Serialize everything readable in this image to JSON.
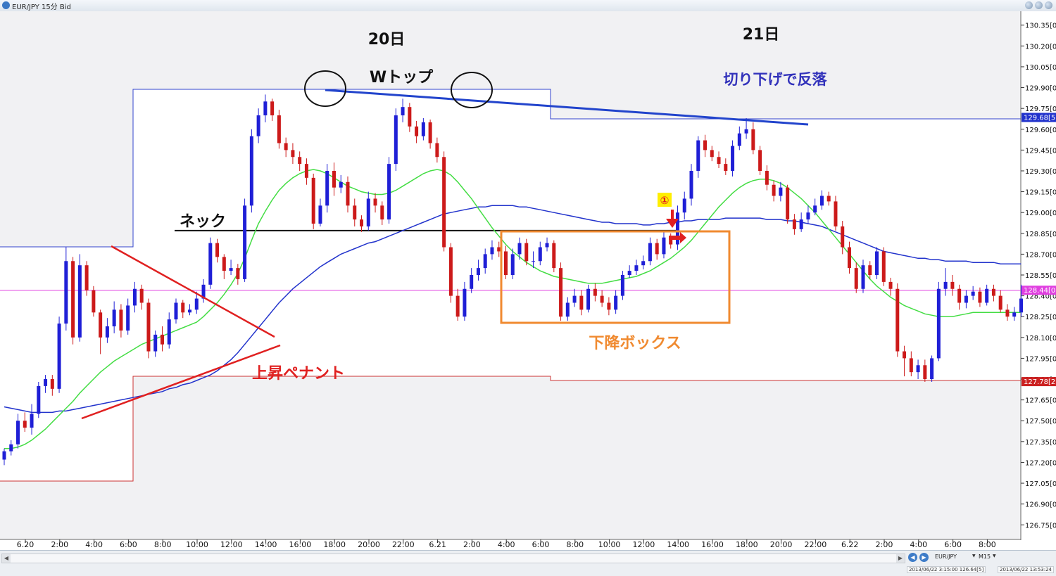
{
  "window": {
    "title": "EUR/JPY 15分 Bid"
  },
  "chart_data": {
    "type": "candlestick",
    "symbol": "EUR/JPY",
    "timeframe": "15分",
    "price": "Bid",
    "ylim": [
      126.65,
      130.45
    ],
    "y_ticks": [
      "130.35[0",
      "130.20[0",
      "130.05[0",
      "129.90[0",
      "129.75[0",
      "129.60[0",
      "129.45[0",
      "129.30[0",
      "129.15[0",
      "129.00[0",
      "128.85[0",
      "128.70[0",
      "128.55[0",
      "128.40[0",
      "128.25[0",
      "128.10[0",
      "127.95[0",
      "127.80[0",
      "127.65[0",
      "127.50[0",
      "127.35[0",
      "127.20[0",
      "127.05[0",
      "126.90[0",
      "126.75[0"
    ],
    "x_ticks": [
      "6.20",
      "2:00",
      "4:00",
      "6:00",
      "8:00",
      "10:00",
      "12:00",
      "14:00",
      "16:00",
      "18:00",
      "20:00",
      "22:00",
      "6.21",
      "2:00",
      "4:00",
      "6:00",
      "8:00",
      "10:00",
      "12:00",
      "14:00",
      "16:00",
      "18:00",
      "20:00",
      "22:00",
      "6.22",
      "2:00",
      "4:00",
      "6:00",
      "8:00"
    ],
    "x_tick_hours": [
      0,
      2,
      4,
      6,
      8,
      10,
      12,
      14,
      16,
      18,
      20,
      22,
      24,
      26,
      28,
      30,
      32,
      34,
      36,
      38,
      40,
      42,
      44,
      46,
      48,
      50,
      52,
      54,
      56
    ],
    "price_labels": {
      "upper": "129.68[5",
      "current": "128.44[0",
      "lower": "127.78[2"
    },
    "levels": {
      "current": 128.44,
      "upper": 129.685,
      "lower": 127.782,
      "neck": 128.87
    },
    "day_labels": [
      "20日",
      "21日"
    ],
    "annotations": {
      "w_top": "Wトップ",
      "neck": "ネック",
      "descending_box": "下降ボックス",
      "rising_pennant": "上昇ペナント",
      "lower_high_fall": "切り下げで反落",
      "marker": "①"
    },
    "candles": {
      "open": [
        127.22,
        127.28,
        127.33,
        127.5,
        127.45,
        127.55,
        127.75,
        127.8,
        127.73,
        128.2,
        128.65,
        128.1,
        128.62,
        128.44,
        128.28,
        128.1,
        128.18,
        128.3,
        128.15,
        128.33,
        128.45,
        128.35,
        128.0,
        128.12,
        128.05,
        128.23,
        128.35,
        128.28,
        128.3,
        128.38,
        128.48,
        128.78,
        128.68,
        128.58,
        128.6,
        128.52,
        129.05,
        129.55,
        129.7,
        129.8,
        129.7,
        129.5,
        129.45,
        129.4,
        129.35,
        129.25,
        128.92,
        129.05,
        129.3,
        129.18,
        129.22,
        129.05,
        128.95,
        128.9,
        129.1,
        129.05,
        128.95,
        129.35,
        129.7,
        129.76,
        129.62,
        129.55,
        129.65,
        129.5,
        129.4,
        128.75,
        128.4,
        128.25,
        128.45,
        128.55,
        128.6,
        128.7,
        128.75,
        128.72,
        128.55,
        128.7,
        128.78,
        128.65,
        128.65,
        128.75,
        128.78,
        128.6,
        128.25,
        128.35,
        128.4,
        128.3,
        128.45,
        128.4,
        128.35,
        128.3,
        128.4,
        128.55,
        128.58,
        128.62,
        128.65,
        128.78,
        128.7,
        128.82,
        128.77,
        129.0,
        129.1,
        129.3,
        129.52,
        129.45,
        129.4,
        129.35,
        129.3,
        129.48,
        129.57,
        129.6,
        129.45,
        129.3,
        129.2,
        129.12,
        129.18,
        128.95,
        128.88,
        128.95,
        129.0,
        129.05,
        129.12,
        129.08,
        128.9,
        128.75,
        128.6,
        128.45,
        128.62,
        128.55,
        128.72,
        128.5,
        128.45,
        128.0,
        127.95,
        127.85,
        127.9,
        127.8,
        127.95,
        128.45,
        128.5,
        128.45,
        128.35,
        128.4,
        128.43,
        128.35,
        128.45,
        128.4,
        128.3,
        128.25,
        128.28
      ],
      "close": [
        127.28,
        127.33,
        127.5,
        127.45,
        127.55,
        127.75,
        127.8,
        127.73,
        128.2,
        128.65,
        128.1,
        128.62,
        128.44,
        128.28,
        128.1,
        128.18,
        128.3,
        128.15,
        128.33,
        128.45,
        128.35,
        128.0,
        128.12,
        128.05,
        128.23,
        128.35,
        128.28,
        128.3,
        128.38,
        128.48,
        128.78,
        128.68,
        128.58,
        128.6,
        128.52,
        129.05,
        129.55,
        129.7,
        129.8,
        129.7,
        129.5,
        129.45,
        129.4,
        129.35,
        129.25,
        128.92,
        129.05,
        129.3,
        129.18,
        129.22,
        129.05,
        128.95,
        128.9,
        129.1,
        129.05,
        128.95,
        129.35,
        129.7,
        129.76,
        129.62,
        129.55,
        129.65,
        129.5,
        129.4,
        128.75,
        128.4,
        128.25,
        128.45,
        128.55,
        128.6,
        128.7,
        128.75,
        128.72,
        128.55,
        128.7,
        128.78,
        128.65,
        128.65,
        128.75,
        128.78,
        128.6,
        128.25,
        128.35,
        128.4,
        128.3,
        128.45,
        128.4,
        128.35,
        128.3,
        128.4,
        128.55,
        128.58,
        128.62,
        128.65,
        128.78,
        128.7,
        128.82,
        128.77,
        129.0,
        129.1,
        129.3,
        129.52,
        129.45,
        129.4,
        129.35,
        129.3,
        129.48,
        129.57,
        129.6,
        129.45,
        129.3,
        129.2,
        129.12,
        129.18,
        128.95,
        128.88,
        128.95,
        129.0,
        129.05,
        129.12,
        129.08,
        128.9,
        128.75,
        128.6,
        128.45,
        128.62,
        128.55,
        128.72,
        128.5,
        128.45,
        128.0,
        127.95,
        127.85,
        127.9,
        127.8,
        127.95,
        128.45,
        128.5,
        128.45,
        128.35,
        128.4,
        128.43,
        128.35,
        128.45,
        128.4,
        128.3,
        128.25,
        128.28,
        128.38
      ],
      "high": [
        127.3,
        127.36,
        127.55,
        127.56,
        127.62,
        127.78,
        127.83,
        127.83,
        128.25,
        128.75,
        128.68,
        128.7,
        128.65,
        128.47,
        128.3,
        128.24,
        128.36,
        128.34,
        128.38,
        128.5,
        128.48,
        128.38,
        128.15,
        128.18,
        128.28,
        128.38,
        128.37,
        128.34,
        128.43,
        128.52,
        128.82,
        128.81,
        128.7,
        128.66,
        128.63,
        129.1,
        129.6,
        129.75,
        129.85,
        129.82,
        129.74,
        129.54,
        129.5,
        129.44,
        129.39,
        129.28,
        129.1,
        129.35,
        129.36,
        129.27,
        129.26,
        129.1,
        128.98,
        129.15,
        129.14,
        129.08,
        129.4,
        129.75,
        129.82,
        129.79,
        129.66,
        129.68,
        129.67,
        129.54,
        129.44,
        128.78,
        128.45,
        128.5,
        128.6,
        128.66,
        128.74,
        128.8,
        128.79,
        128.76,
        128.74,
        128.82,
        128.81,
        128.72,
        128.79,
        128.82,
        128.8,
        128.64,
        128.39,
        128.45,
        128.44,
        128.48,
        128.49,
        128.44,
        128.39,
        128.44,
        128.58,
        128.62,
        128.66,
        128.69,
        128.82,
        128.81,
        128.86,
        128.85,
        129.05,
        129.15,
        129.35,
        129.55,
        129.56,
        129.48,
        129.44,
        129.39,
        129.52,
        129.62,
        129.68,
        129.65,
        129.48,
        129.34,
        129.23,
        129.22,
        129.2,
        128.99,
        129.0,
        129.05,
        129.1,
        129.16,
        129.15,
        129.12,
        128.94,
        128.79,
        128.64,
        128.66,
        128.65,
        128.75,
        128.75,
        128.53,
        128.49,
        128.04,
        128.0,
        127.94,
        127.94,
        127.97,
        128.5,
        128.6,
        128.55,
        128.48,
        128.44,
        128.47,
        128.46,
        128.48,
        128.48,
        128.44,
        128.34,
        128.32,
        128.48
      ],
      "low": [
        127.18,
        127.25,
        127.3,
        127.42,
        127.4,
        127.52,
        127.7,
        127.68,
        127.7,
        128.15,
        128.05,
        128.07,
        128.4,
        128.25,
        127.98,
        128.06,
        128.13,
        128.1,
        128.12,
        128.28,
        128.3,
        127.95,
        127.96,
        128.0,
        128.02,
        128.2,
        128.24,
        128.26,
        128.27,
        128.35,
        128.45,
        128.64,
        128.52,
        128.55,
        128.48,
        128.5,
        129.0,
        129.5,
        129.65,
        129.66,
        129.46,
        129.4,
        129.35,
        129.3,
        129.2,
        128.88,
        128.9,
        129.0,
        129.12,
        129.14,
        129.0,
        128.9,
        128.86,
        128.87,
        129.0,
        128.91,
        128.92,
        129.3,
        129.65,
        129.58,
        129.5,
        129.52,
        129.46,
        129.36,
        128.72,
        128.35,
        128.22,
        128.22,
        128.42,
        128.51,
        128.56,
        128.66,
        128.68,
        128.52,
        128.52,
        128.66,
        128.62,
        128.6,
        128.62,
        128.72,
        128.57,
        128.22,
        128.22,
        128.32,
        128.26,
        128.28,
        128.36,
        128.32,
        128.26,
        128.27,
        128.37,
        128.53,
        128.55,
        128.59,
        128.62,
        128.66,
        128.67,
        128.74,
        128.73,
        128.95,
        129.05,
        129.25,
        129.4,
        129.37,
        129.32,
        129.27,
        129.26,
        129.45,
        129.53,
        129.42,
        129.27,
        129.16,
        129.08,
        129.08,
        128.92,
        128.84,
        128.86,
        128.92,
        128.98,
        129.02,
        129.05,
        128.87,
        128.7,
        128.56,
        128.42,
        128.42,
        128.52,
        128.52,
        128.47,
        128.4,
        127.96,
        127.82,
        127.82,
        127.8,
        127.78,
        127.78,
        127.93,
        128.4,
        128.4,
        128.3,
        128.31,
        128.37,
        128.32,
        128.33,
        128.36,
        128.28,
        128.22,
        128.22,
        128.25
      ]
    },
    "sma_green": [
      127.3,
      127.3,
      127.31,
      127.33,
      127.36,
      127.4,
      127.44,
      127.49,
      127.54,
      127.59,
      127.64,
      127.7,
      127.75,
      127.8,
      127.85,
      127.89,
      127.93,
      127.96,
      127.99,
      128.02,
      128.05,
      128.07,
      128.09,
      128.11,
      128.13,
      128.15,
      128.17,
      128.19,
      128.21,
      128.25,
      128.3,
      128.35,
      128.41,
      128.48,
      128.56,
      128.67,
      128.8,
      128.92,
      129.01,
      129.09,
      129.16,
      129.21,
      129.25,
      129.28,
      129.3,
      129.31,
      129.3,
      129.28,
      129.25,
      129.22,
      129.19,
      129.17,
      129.15,
      129.14,
      129.13,
      129.13,
      129.14,
      129.16,
      129.19,
      129.22,
      129.25,
      129.28,
      129.3,
      129.31,
      129.3,
      129.27,
      129.22,
      129.16,
      129.1,
      129.03,
      128.96,
      128.89,
      128.83,
      128.77,
      128.72,
      128.68,
      128.64,
      128.61,
      128.58,
      128.56,
      128.54,
      128.53,
      128.52,
      128.51,
      128.5,
      128.49,
      128.49,
      128.49,
      128.5,
      128.51,
      128.52,
      128.53,
      128.54,
      128.56,
      128.58,
      128.61,
      128.64,
      128.67,
      128.71,
      128.75,
      128.8,
      128.86,
      128.92,
      128.98,
      129.04,
      129.09,
      129.14,
      129.18,
      129.21,
      129.23,
      129.24,
      129.24,
      129.23,
      129.21,
      129.18,
      129.14,
      129.1,
      129.05,
      129.0,
      128.94,
      128.88,
      128.82,
      128.76,
      128.7,
      128.64,
      128.58,
      128.52,
      128.47,
      128.43,
      128.39,
      128.36,
      128.33,
      128.31,
      128.29,
      128.27,
      128.26,
      128.25,
      128.25,
      128.25,
      128.26,
      128.27,
      128.28,
      128.28,
      128.28,
      128.28,
      128.28,
      128.28,
      128.28,
      128.28
    ],
    "sma_blue": [
      127.6,
      127.59,
      127.58,
      127.57,
      127.56,
      127.56,
      127.56,
      127.56,
      127.57,
      127.57,
      127.58,
      127.59,
      127.6,
      127.61,
      127.62,
      127.63,
      127.64,
      127.65,
      127.66,
      127.67,
      127.68,
      127.69,
      127.7,
      127.71,
      127.73,
      127.74,
      127.76,
      127.77,
      127.79,
      127.81,
      127.83,
      127.86,
      127.9,
      127.94,
      127.99,
      128.05,
      128.11,
      128.17,
      128.23,
      128.29,
      128.35,
      128.4,
      128.45,
      128.49,
      128.53,
      128.57,
      128.61,
      128.64,
      128.67,
      128.7,
      128.72,
      128.74,
      128.76,
      128.78,
      128.79,
      128.81,
      128.83,
      128.85,
      128.87,
      128.89,
      128.91,
      128.93,
      128.95,
      128.97,
      128.99,
      129.0,
      129.01,
      129.02,
      129.03,
      129.04,
      129.04,
      129.05,
      129.05,
      129.05,
      129.05,
      129.04,
      129.04,
      129.03,
      129.02,
      129.01,
      129.0,
      128.99,
      128.98,
      128.97,
      128.96,
      128.95,
      128.94,
      128.93,
      128.93,
      128.92,
      128.92,
      128.92,
      128.92,
      128.91,
      128.91,
      128.92,
      128.92,
      128.93,
      128.93,
      128.94,
      128.94,
      128.95,
      128.95,
      128.95,
      128.95,
      128.96,
      128.96,
      128.96,
      128.96,
      128.96,
      128.96,
      128.95,
      128.95,
      128.95,
      128.94,
      128.94,
      128.93,
      128.92,
      128.91,
      128.9,
      128.88,
      128.86,
      128.84,
      128.82,
      128.8,
      128.78,
      128.76,
      128.74,
      128.72,
      128.71,
      128.7,
      128.69,
      128.68,
      128.67,
      128.67,
      128.66,
      128.66,
      128.65,
      128.65,
      128.65,
      128.65,
      128.64,
      128.64,
      128.64,
      128.64,
      128.63,
      128.63,
      128.63,
      128.63
    ]
  },
  "statusbar": {
    "symbol": "EUR/JPY",
    "timeframe": "M15",
    "status1": "2013/06/22 3:15:00   126.64[5]",
    "status2": "2013/06/22 13:53:24"
  },
  "colors": {
    "bull": "#1f1fd6",
    "bear": "#cc1a1a",
    "sma_green": "#44dd44",
    "sma_blue": "#2233cc",
    "current_line": "#e040e0",
    "box": "#f08a30",
    "pennant": "#e02020",
    "trendline": "#2244cc",
    "annotation_blue": "#3333bb"
  }
}
